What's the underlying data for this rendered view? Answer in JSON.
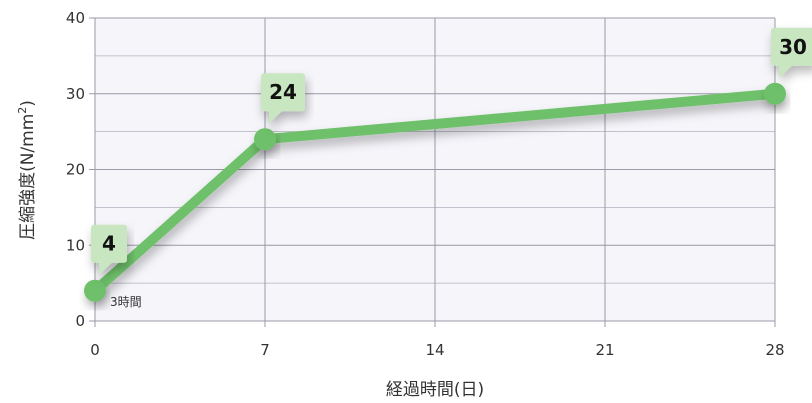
{
  "chart_data": {
    "type": "line",
    "xlabel": "経過時間(日)",
    "ylabel_main": "圧縮強度(N/mm",
    "ylabel_sup": "2",
    "ylabel_close": ")",
    "x_ticks": [
      0,
      7,
      14,
      21,
      28
    ],
    "y_ticks": [
      0,
      10,
      20,
      30,
      40
    ],
    "xlim": [
      0,
      28
    ],
    "ylim": [
      0,
      40
    ],
    "grid": true,
    "series": [
      {
        "x": [
          0,
          7,
          28
        ],
        "values": [
          4,
          24,
          30
        ],
        "labels": [
          "4",
          "24",
          "30"
        ]
      }
    ],
    "annotation": {
      "x": 0,
      "text": "3時間"
    },
    "colors": {
      "line": "#6ec06a",
      "callout": "#c8e6c0",
      "grid": "#9a9aa8",
      "plot_bg": "#f5f5fa"
    }
  }
}
